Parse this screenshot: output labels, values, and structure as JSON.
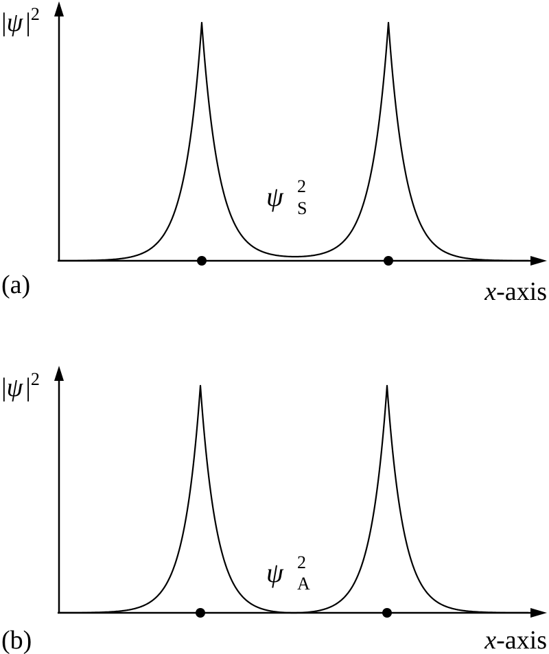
{
  "panels": [
    {
      "id": "a",
      "panel_label": "(a)",
      "y_axis_label": {
        "bar_left": "|",
        "psi": "ψ",
        "bar_right": "|",
        "exponent": "2"
      },
      "x_axis_label": {
        "var": "x",
        "suffix": "-axis"
      },
      "curve_label": {
        "symbol": "ψ",
        "superscript": "2",
        "subscript": "S"
      },
      "curve_type": "symmetric",
      "nuclei_count": 2
    },
    {
      "id": "b",
      "panel_label": "(b)",
      "y_axis_label": {
        "bar_left": "|",
        "psi": "ψ",
        "bar_right": "|",
        "exponent": "2"
      },
      "x_axis_label": {
        "var": "x",
        "suffix": "-axis"
      },
      "curve_label": {
        "symbol": "ψ",
        "superscript": "2",
        "subscript": "A"
      },
      "curve_type": "antisymmetric",
      "nuclei_count": 2
    }
  ],
  "colors": {
    "stroke": "#000000",
    "background": "#ffffff"
  }
}
